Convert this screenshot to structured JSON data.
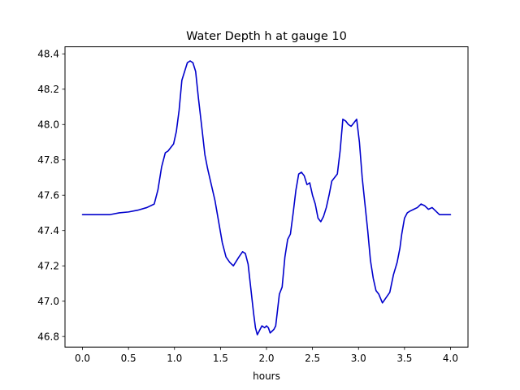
{
  "chart_data": {
    "type": "line",
    "title": "Water Depth h at gauge 10",
    "xlabel": "hours",
    "ylabel": "",
    "xlim": [
      -0.19,
      4.19
    ],
    "ylim": [
      46.74,
      48.44
    ],
    "xticks": [
      0.0,
      0.5,
      1.0,
      1.5,
      2.0,
      2.5,
      3.0,
      3.5,
      4.0
    ],
    "xtick_labels": [
      "0.0",
      "0.5",
      "1.0",
      "1.5",
      "2.0",
      "2.5",
      "3.0",
      "3.5",
      "4.0"
    ],
    "yticks": [
      46.8,
      47.0,
      47.2,
      47.4,
      47.6,
      47.8,
      48.0,
      48.2,
      48.4
    ],
    "ytick_labels": [
      "46.8",
      "47.0",
      "47.2",
      "47.4",
      "47.6",
      "47.8",
      "48.0",
      "48.2",
      "48.4"
    ],
    "grid": false,
    "series": [
      {
        "color": "#0000cc",
        "x": [
          0.0,
          0.1,
          0.2,
          0.3,
          0.4,
          0.5,
          0.6,
          0.7,
          0.78,
          0.82,
          0.86,
          0.9,
          0.93,
          0.96,
          0.99,
          1.02,
          1.05,
          1.08,
          1.11,
          1.14,
          1.17,
          1.2,
          1.23,
          1.26,
          1.3,
          1.33,
          1.36,
          1.4,
          1.44,
          1.48,
          1.52,
          1.56,
          1.6,
          1.64,
          1.7,
          1.74,
          1.77,
          1.8,
          1.83,
          1.86,
          1.88,
          1.9,
          1.92,
          1.95,
          1.98,
          2.0,
          2.02,
          2.04,
          2.06,
          2.08,
          2.1,
          2.12,
          2.14,
          2.17,
          2.2,
          2.23,
          2.26,
          2.29,
          2.32,
          2.35,
          2.38,
          2.41,
          2.44,
          2.47,
          2.5,
          2.53,
          2.56,
          2.59,
          2.62,
          2.65,
          2.68,
          2.71,
          2.74,
          2.77,
          2.8,
          2.83,
          2.86,
          2.89,
          2.92,
          2.95,
          2.98,
          3.01,
          3.04,
          3.07,
          3.1,
          3.13,
          3.16,
          3.19,
          3.22,
          3.26,
          3.3,
          3.34,
          3.38,
          3.42,
          3.45,
          3.47,
          3.5,
          3.53,
          3.56,
          3.6,
          3.64,
          3.68,
          3.72,
          3.76,
          3.8,
          3.84,
          3.88,
          3.92,
          3.96,
          4.0
        ],
        "y": [
          47.49,
          47.49,
          47.49,
          47.49,
          47.5,
          47.505,
          47.515,
          47.53,
          47.55,
          47.63,
          47.76,
          47.84,
          47.85,
          47.87,
          47.89,
          47.96,
          48.08,
          48.25,
          48.3,
          48.35,
          48.36,
          48.35,
          48.3,
          48.15,
          47.97,
          47.83,
          47.75,
          47.66,
          47.57,
          47.45,
          47.33,
          47.25,
          47.22,
          47.2,
          47.25,
          47.28,
          47.27,
          47.21,
          47.07,
          46.93,
          46.85,
          46.81,
          46.83,
          46.86,
          46.85,
          46.86,
          46.85,
          46.82,
          46.83,
          46.84,
          46.86,
          46.95,
          47.04,
          47.08,
          47.25,
          47.35,
          47.38,
          47.5,
          47.63,
          47.72,
          47.73,
          47.71,
          47.66,
          47.67,
          47.6,
          47.55,
          47.47,
          47.45,
          47.48,
          47.53,
          47.6,
          47.68,
          47.7,
          47.72,
          47.85,
          48.03,
          48.02,
          48.0,
          47.99,
          48.01,
          48.03,
          47.9,
          47.7,
          47.55,
          47.4,
          47.23,
          47.13,
          47.06,
          47.04,
          46.99,
          47.02,
          47.05,
          47.15,
          47.22,
          47.3,
          47.38,
          47.47,
          47.5,
          47.51,
          47.52,
          47.53,
          47.55,
          47.54,
          47.52,
          47.53,
          47.51,
          47.49,
          47.49,
          47.49,
          47.49
        ]
      }
    ]
  }
}
